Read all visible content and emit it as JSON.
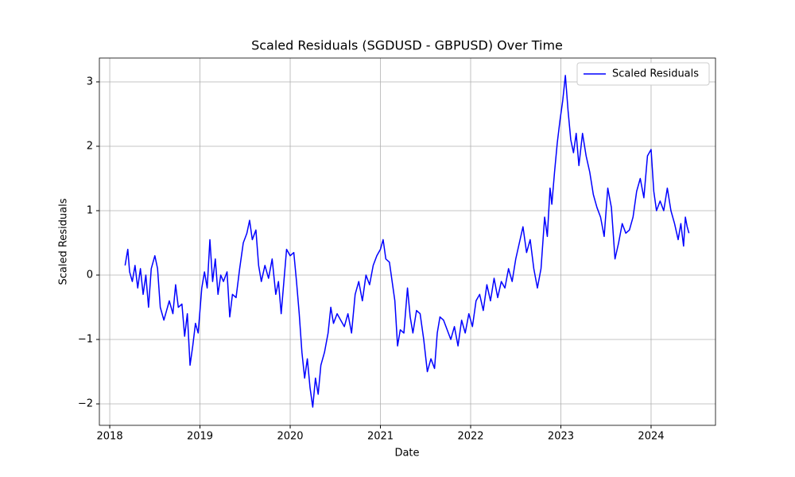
{
  "chart_data": {
    "type": "line",
    "title": "Scaled Residuals (SGDUSD - GBPUSD) Over Time",
    "xlabel": "Date",
    "ylabel": "Scaled Residuals",
    "x": [
      2018.17,
      2018.2,
      2018.22,
      2018.25,
      2018.28,
      2018.31,
      2018.34,
      2018.37,
      2018.4,
      2018.43,
      2018.46,
      2018.5,
      2018.53,
      2018.56,
      2018.6,
      2018.63,
      2018.66,
      2018.7,
      2018.73,
      2018.76,
      2018.8,
      2018.83,
      2018.86,
      2018.89,
      2018.92,
      2018.95,
      2018.98,
      2019.02,
      2019.05,
      2019.08,
      2019.11,
      2019.14,
      2019.17,
      2019.2,
      2019.23,
      2019.26,
      2019.3,
      2019.33,
      2019.36,
      2019.4,
      2019.44,
      2019.48,
      2019.52,
      2019.55,
      2019.58,
      2019.62,
      2019.65,
      2019.68,
      2019.72,
      2019.76,
      2019.8,
      2019.84,
      2019.87,
      2019.9,
      2019.93,
      2019.96,
      2020.0,
      2020.04,
      2020.07,
      2020.1,
      2020.13,
      2020.16,
      2020.19,
      2020.22,
      2020.25,
      2020.28,
      2020.31,
      2020.34,
      2020.38,
      2020.42,
      2020.45,
      2020.48,
      2020.52,
      2020.56,
      2020.6,
      2020.64,
      2020.68,
      2020.72,
      2020.76,
      2020.8,
      2020.84,
      2020.88,
      2020.92,
      2020.96,
      2021.0,
      2021.03,
      2021.06,
      2021.1,
      2021.13,
      2021.16,
      2021.19,
      2021.22,
      2021.26,
      2021.3,
      2021.33,
      2021.36,
      2021.4,
      2021.44,
      2021.48,
      2021.52,
      2021.56,
      2021.6,
      2021.63,
      2021.66,
      2021.7,
      2021.74,
      2021.78,
      2021.82,
      2021.86,
      2021.9,
      2021.94,
      2021.98,
      2022.02,
      2022.06,
      2022.1,
      2022.14,
      2022.18,
      2022.22,
      2022.26,
      2022.3,
      2022.34,
      2022.38,
      2022.42,
      2022.46,
      2022.5,
      2022.54,
      2022.58,
      2022.62,
      2022.66,
      2022.7,
      2022.74,
      2022.78,
      2022.82,
      2022.85,
      2022.88,
      2022.9,
      2022.93,
      2022.96,
      2022.99,
      2023.02,
      2023.05,
      2023.08,
      2023.11,
      2023.14,
      2023.17,
      2023.2,
      2023.24,
      2023.28,
      2023.32,
      2023.36,
      2023.4,
      2023.44,
      2023.48,
      2023.52,
      2023.56,
      2023.6,
      2023.64,
      2023.68,
      2023.72,
      2023.76,
      2023.8,
      2023.84,
      2023.88,
      2023.92,
      2023.96,
      2024.0,
      2024.03,
      2024.06,
      2024.1,
      2024.14,
      2024.18,
      2024.22,
      2024.26,
      2024.3,
      2024.33,
      2024.36,
      2024.38,
      2024.4,
      2024.42
    ],
    "series": [
      {
        "name": "Scaled Residuals",
        "color": "#0000ff",
        "values": [
          0.15,
          0.4,
          0.05,
          -0.1,
          0.15,
          -0.2,
          0.1,
          -0.3,
          0.0,
          -0.5,
          0.1,
          0.3,
          0.1,
          -0.5,
          -0.7,
          -0.55,
          -0.4,
          -0.6,
          -0.15,
          -0.5,
          -0.45,
          -0.95,
          -0.6,
          -1.4,
          -1.1,
          -0.75,
          -0.9,
          -0.2,
          0.05,
          -0.2,
          0.55,
          -0.1,
          0.25,
          -0.3,
          0.0,
          -0.1,
          0.05,
          -0.65,
          -0.3,
          -0.35,
          0.1,
          0.5,
          0.65,
          0.85,
          0.55,
          0.7,
          0.15,
          -0.1,
          0.15,
          -0.05,
          0.25,
          -0.3,
          -0.1,
          -0.6,
          -0.1,
          0.4,
          0.3,
          0.35,
          -0.1,
          -0.6,
          -1.2,
          -1.6,
          -1.3,
          -1.75,
          -2.05,
          -1.6,
          -1.85,
          -1.4,
          -1.2,
          -0.9,
          -0.5,
          -0.75,
          -0.6,
          -0.7,
          -0.8,
          -0.6,
          -0.9,
          -0.3,
          -0.1,
          -0.4,
          0.0,
          -0.15,
          0.15,
          0.3,
          0.4,
          0.55,
          0.25,
          0.2,
          -0.1,
          -0.4,
          -1.1,
          -0.85,
          -0.9,
          -0.2,
          -0.65,
          -0.9,
          -0.55,
          -0.6,
          -1.0,
          -1.5,
          -1.3,
          -1.45,
          -0.9,
          -0.65,
          -0.7,
          -0.85,
          -1.0,
          -0.8,
          -1.1,
          -0.7,
          -0.9,
          -0.6,
          -0.8,
          -0.4,
          -0.3,
          -0.55,
          -0.15,
          -0.4,
          -0.05,
          -0.35,
          -0.1,
          -0.2,
          0.1,
          -0.1,
          0.25,
          0.5,
          0.75,
          0.35,
          0.55,
          0.1,
          -0.2,
          0.1,
          0.9,
          0.6,
          1.35,
          1.1,
          1.6,
          2.05,
          2.4,
          2.7,
          3.1,
          2.55,
          2.1,
          1.9,
          2.2,
          1.7,
          2.2,
          1.85,
          1.6,
          1.25,
          1.05,
          0.9,
          0.6,
          1.35,
          1.05,
          0.25,
          0.5,
          0.8,
          0.65,
          0.7,
          0.9,
          1.3,
          1.5,
          1.2,
          1.85,
          1.95,
          1.3,
          1.0,
          1.15,
          1.0,
          1.35,
          1.0,
          0.8,
          0.55,
          0.8,
          0.45,
          0.9,
          0.75,
          0.65
        ]
      }
    ],
    "xlim": [
      2017.885,
      2024.714
    ],
    "xticks": [
      2018,
      2019,
      2020,
      2021,
      2022,
      2023,
      2024
    ],
    "ylim": [
      -2.333,
      3.37
    ],
    "yticks": [
      {
        "value": -2,
        "label": "−2"
      },
      {
        "value": -1,
        "label": "−1"
      },
      0,
      1,
      2,
      3
    ],
    "grid": true,
    "legend": "upper right"
  }
}
